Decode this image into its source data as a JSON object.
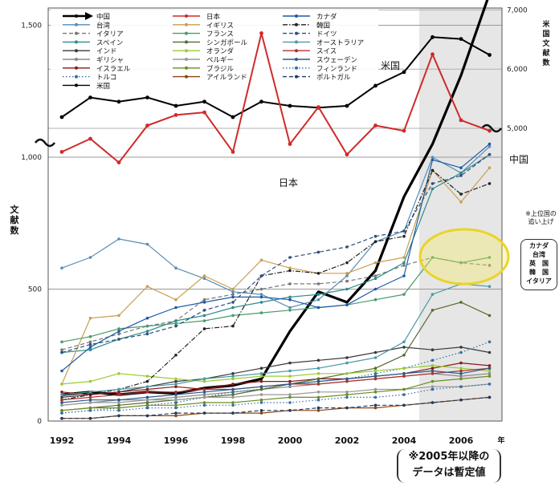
{
  "chart_data": {
    "type": "line",
    "ylabel": "文献数",
    "y2label": "米国文献数",
    "x_unit": "年",
    "x": [
      1992,
      1993,
      1994,
      1995,
      1996,
      1997,
      1998,
      1999,
      2000,
      2001,
      2002,
      2003,
      2004,
      2005,
      2006,
      2007
    ],
    "x_ticks": [
      "1992",
      "1994",
      "1996",
      "1998",
      "2000",
      "2002",
      "2004",
      "2006"
    ],
    "ylim": [
      0,
      1600
    ],
    "y_ticks": [
      "0",
      "500",
      "1,000",
      "1,500"
    ],
    "y2_ticks": [
      "5,000",
      "6,000",
      "7,000"
    ],
    "y2_tick_values": [
      5000,
      6000,
      7000
    ],
    "y2_display_range": [
      4000,
      7000
    ],
    "provisional_from": 2005,
    "grid": true,
    "legend_position": "top-left",
    "series": [
      {
        "name": "中国",
        "color": "#000000",
        "style": "arrow",
        "values": [
          100,
          110,
          100,
          110,
          105,
          125,
          135,
          160,
          340,
          490,
          450,
          570,
          850,
          1050,
          1310,
          1620
        ]
      },
      {
        "name": "台湾",
        "color": "#5a8db5",
        "values": [
          580,
          620,
          690,
          670,
          580,
          540,
          490,
          480,
          430,
          460,
          550,
          680,
          720,
          1000,
          940,
          1040
        ]
      },
      {
        "name": "イタリア",
        "color": "#777777",
        "style": "dashed",
        "values": [
          270,
          300,
          330,
          360,
          380,
          460,
          480,
          500,
          520,
          520,
          530,
          550,
          590,
          620,
          600,
          590
        ]
      },
      {
        "name": "スペイン",
        "color": "#2e8b8b",
        "values": [
          260,
          270,
          310,
          340,
          380,
          400,
          430,
          450,
          470,
          480,
          500,
          540,
          600,
          880,
          940,
          1010
        ]
      },
      {
        "name": "インド",
        "color": "#3a3a3a",
        "values": [
          90,
          100,
          110,
          130,
          150,
          160,
          180,
          200,
          220,
          230,
          240,
          260,
          280,
          270,
          280,
          260
        ]
      },
      {
        "name": "ギリシャ",
        "color": "#888888",
        "values": [
          60,
          70,
          80,
          80,
          90,
          100,
          110,
          120,
          130,
          140,
          150,
          160,
          170,
          180,
          170,
          180
        ]
      },
      {
        "name": "イスラエル",
        "color": "#8b1a1a",
        "values": [
          110,
          100,
          110,
          120,
          130,
          120,
          140,
          150,
          150,
          160,
          160,
          170,
          180,
          200,
          220,
          210
        ]
      },
      {
        "name": "トルコ",
        "color": "#2f6f9f",
        "style": "dotted",
        "values": [
          30,
          40,
          50,
          60,
          70,
          90,
          110,
          120,
          140,
          150,
          160,
          180,
          200,
          230,
          260,
          300
        ]
      },
      {
        "name": "米国",
        "color": "#000000",
        "axis": "right",
        "values": [
          5190,
          5520,
          5450,
          5520,
          5380,
          5450,
          5190,
          5450,
          5380,
          5350,
          5380,
          5720,
          5950,
          6540,
          6510,
          6240
        ]
      },
      {
        "name": "日本",
        "color": "#d02a2a",
        "values": [
          1020,
          1070,
          980,
          1120,
          1160,
          1170,
          1020,
          1470,
          1050,
          1190,
          1010,
          1120,
          1100,
          1390,
          1140,
          1100
        ]
      },
      {
        "name": "イギリス",
        "color": "#c8a050",
        "values": [
          140,
          390,
          400,
          510,
          460,
          550,
          500,
          610,
          580,
          560,
          560,
          600,
          620,
          950,
          830,
          960
        ]
      },
      {
        "name": "フランス",
        "color": "#4a9a6a",
        "values": [
          300,
          320,
          350,
          360,
          370,
          380,
          400,
          410,
          420,
          430,
          440,
          460,
          480,
          620,
          600,
          620
        ]
      },
      {
        "name": "シンガポール",
        "color": "#556b2f",
        "values": [
          40,
          50,
          60,
          70,
          80,
          90,
          100,
          120,
          140,
          160,
          180,
          200,
          250,
          420,
          450,
          400
        ]
      },
      {
        "name": "オランダ",
        "color": "#9acd32",
        "values": [
          140,
          150,
          180,
          170,
          160,
          150,
          160,
          170,
          170,
          180,
          180,
          190,
          200,
          210,
          200,
          190
        ]
      },
      {
        "name": "ベルギー",
        "color": "#999999",
        "values": [
          60,
          70,
          70,
          80,
          80,
          90,
          90,
          100,
          100,
          110,
          110,
          120,
          120,
          130,
          130,
          140
        ]
      },
      {
        "name": "ブラジル",
        "color": "#6b8e23",
        "values": [
          40,
          50,
          50,
          60,
          60,
          70,
          70,
          80,
          90,
          90,
          100,
          110,
          120,
          150,
          160,
          170
        ]
      },
      {
        "name": "アイルランド",
        "color": "#8b4513",
        "values": [
          10,
          10,
          20,
          20,
          20,
          30,
          30,
          30,
          40,
          40,
          50,
          50,
          60,
          70,
          80,
          90
        ]
      },
      {
        "name": "カナダ",
        "color": "#1f5aa6",
        "values": [
          190,
          280,
          340,
          390,
          430,
          450,
          470,
          470,
          460,
          430,
          440,
          500,
          550,
          990,
          960,
          1050
        ]
      },
      {
        "name": "韓国",
        "color": "#222222",
        "style": "dashdot",
        "values": [
          80,
          100,
          120,
          150,
          250,
          350,
          360,
          550,
          570,
          560,
          600,
          680,
          700,
          950,
          860,
          900
        ]
      },
      {
        "name": "ドイツ",
        "color": "#2e4e7e",
        "style": "dashed",
        "values": [
          260,
          290,
          310,
          330,
          360,
          420,
          450,
          550,
          620,
          640,
          660,
          700,
          720,
          900,
          930,
          1010
        ]
      },
      {
        "name": "オーストラリア",
        "color": "#4c9aa8",
        "values": [
          100,
          110,
          120,
          130,
          140,
          160,
          170,
          180,
          190,
          200,
          220,
          240,
          300,
          480,
          520,
          510
        ]
      },
      {
        "name": "スイス",
        "color": "#b03030",
        "values": [
          80,
          90,
          100,
          110,
          110,
          120,
          120,
          130,
          140,
          140,
          150,
          160,
          170,
          180,
          190,
          200
        ]
      },
      {
        "name": "スウェーデン",
        "color": "#2a5a8a",
        "values": [
          70,
          80,
          80,
          90,
          100,
          110,
          120,
          130,
          140,
          150,
          160,
          170,
          180,
          190,
          180,
          200
        ]
      },
      {
        "name": "フィンランド",
        "color": "#3a6ea5",
        "style": "dotted",
        "values": [
          30,
          40,
          40,
          50,
          50,
          60,
          60,
          70,
          70,
          80,
          90,
          90,
          100,
          120,
          130,
          140
        ]
      },
      {
        "name": "ポルトガル",
        "color": "#203a60",
        "style": "dashed",
        "values": [
          10,
          10,
          20,
          20,
          30,
          30,
          30,
          40,
          40,
          50,
          50,
          60,
          60,
          70,
          80,
          90
        ]
      }
    ],
    "annotations": {
      "usa": "米国",
      "japan": "日本",
      "china": "中国",
      "side_note_1": "※上位国の",
      "side_note_2": "追い上げ",
      "side_box": [
        "カナダ",
        "台湾",
        "英　国",
        "韓　国",
        "イタリア"
      ],
      "note_line_1": "※2005年以降の",
      "note_line_2": "データは暫定値"
    }
  }
}
